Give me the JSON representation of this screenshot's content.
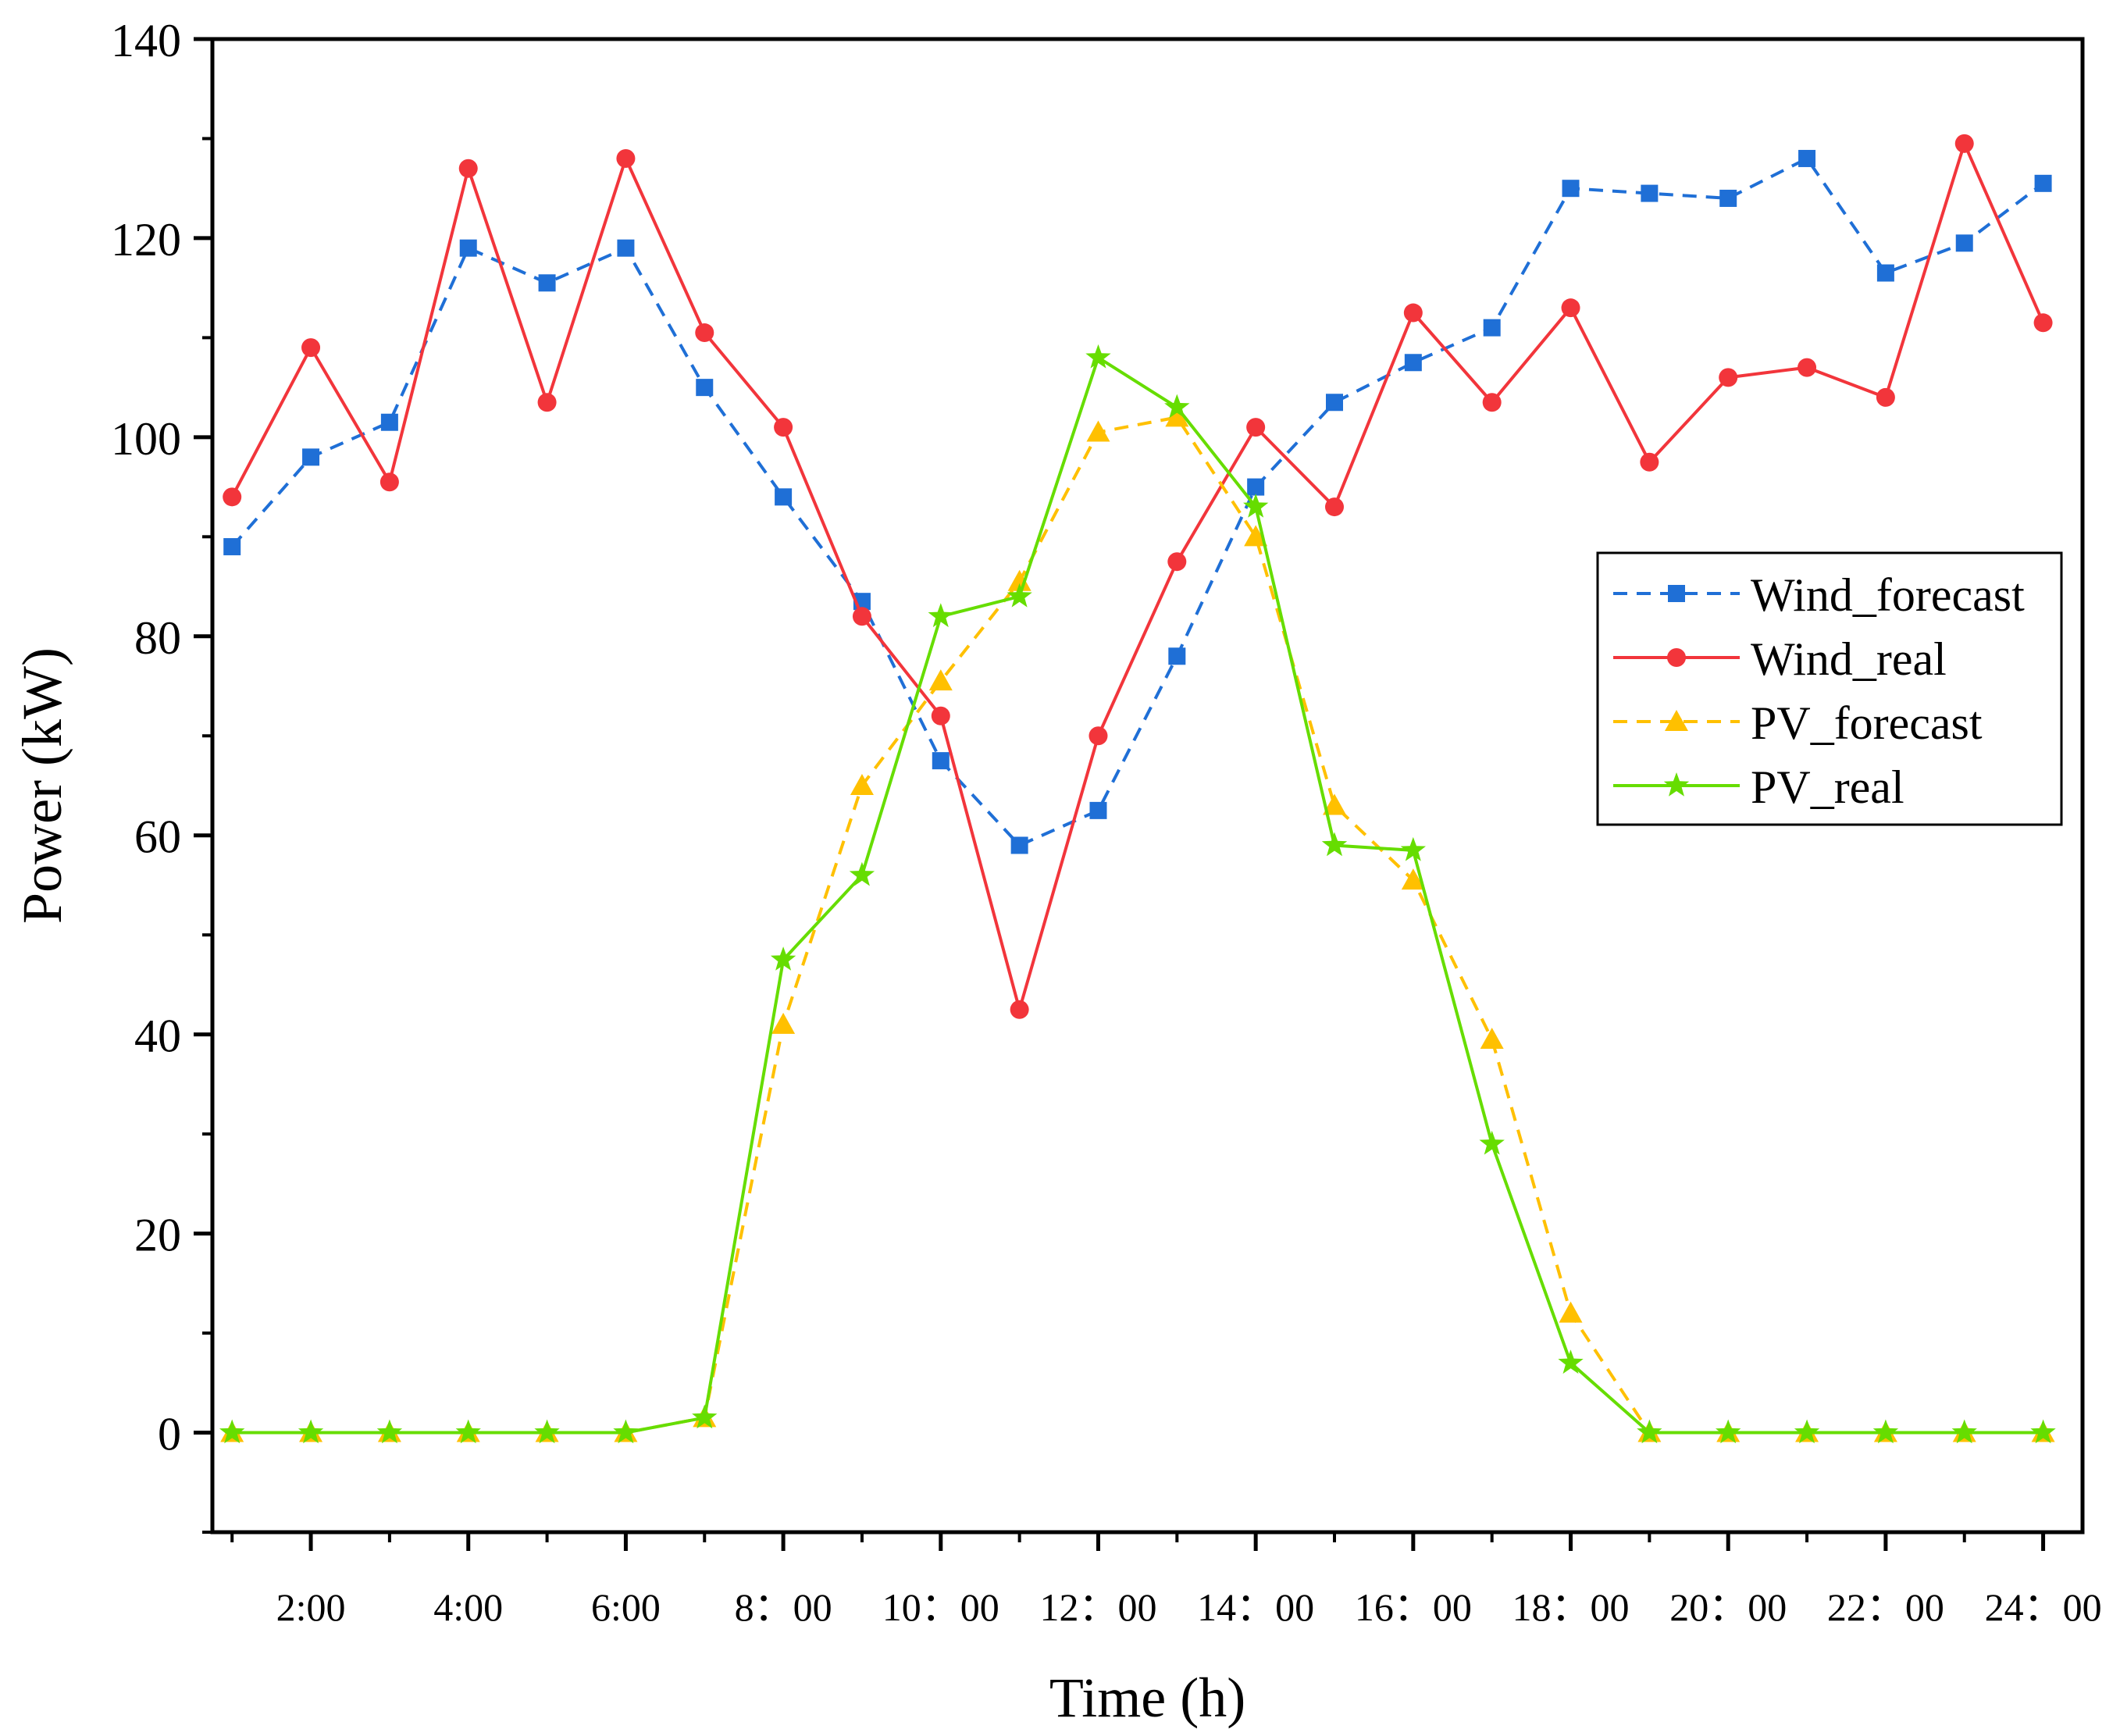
{
  "chart_data": {
    "type": "line",
    "title": "",
    "xlabel": "Time (h)",
    "ylabel": "Power (kW)",
    "x": [
      1,
      2,
      3,
      4,
      5,
      6,
      7,
      8,
      9,
      10,
      11,
      12,
      13,
      14,
      15,
      16,
      17,
      18,
      19,
      20,
      21,
      22,
      23,
      24
    ],
    "xlim": [
      0.75,
      24.5
    ],
    "ylim": [
      -10,
      140
    ],
    "yticks": [
      0,
      20,
      40,
      60,
      80,
      100,
      120,
      140
    ],
    "xtick_labels": [
      {
        "x": 2,
        "label": "2:00"
      },
      {
        "x": 4,
        "label": "4:00"
      },
      {
        "x": 6,
        "label": "6:00"
      },
      {
        "x": 8,
        "label": "8：00"
      },
      {
        "x": 10,
        "label": "10：00"
      },
      {
        "x": 12,
        "label": "12：00"
      },
      {
        "x": 14,
        "label": "14：00"
      },
      {
        "x": 16,
        "label": "16：00"
      },
      {
        "x": 18,
        "label": "18：00"
      },
      {
        "x": 20,
        "label": "20：00"
      },
      {
        "x": 22,
        "label": "22：00"
      },
      {
        "x": 24,
        "label": "24：00"
      }
    ],
    "grid": false,
    "legend_position": "right-center",
    "series": [
      {
        "name": "Wind_forecast",
        "color": "#1f6fd6",
        "line_style": "dashed",
        "marker": "square",
        "values": [
          89,
          98,
          101.5,
          119,
          115.5,
          119,
          105,
          94,
          83.5,
          67.5,
          59,
          62.5,
          78,
          95,
          103.5,
          107.5,
          111,
          125,
          124.5,
          124,
          128,
          116.5,
          119.5,
          125.5
        ]
      },
      {
        "name": "Wind_real",
        "color": "#f2353b",
        "line_style": "solid",
        "marker": "circle",
        "values": [
          94,
          109,
          95.5,
          127,
          103.5,
          128,
          110.5,
          101,
          82,
          72,
          42.5,
          70,
          87.5,
          101,
          93,
          112.5,
          103.5,
          113,
          97.5,
          106,
          107,
          104,
          129.5,
          111.5
        ]
      },
      {
        "name": "PV_forecast",
        "color": "#ffc000",
        "line_style": "dashed",
        "marker": "triangle",
        "values": [
          0,
          0,
          0,
          0,
          0,
          0,
          1.5,
          41,
          65,
          75.5,
          85.5,
          100.5,
          102,
          90,
          63,
          55.5,
          39.5,
          12,
          0,
          0,
          0,
          0,
          0,
          0
        ]
      },
      {
        "name": "PV_real",
        "color": "#66dd00",
        "line_style": "solid",
        "marker": "star",
        "values": [
          0,
          0,
          0,
          0,
          0,
          0,
          1.5,
          47.5,
          56,
          82,
          84,
          108,
          103,
          93,
          59,
          58.5,
          29,
          7,
          0,
          0,
          0,
          0,
          0,
          0
        ]
      }
    ]
  }
}
